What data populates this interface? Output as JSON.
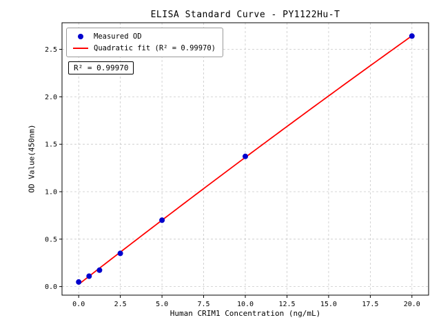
{
  "chart_data": {
    "type": "scatter",
    "title": "ELISA Standard Curve - PY1122Hu-T",
    "xlabel": "Human CRIM1 Concentration (ng/mL)",
    "ylabel": "OD Value(450nm)",
    "x": [
      0,
      0.625,
      1.25,
      2.5,
      5,
      10,
      20
    ],
    "y": [
      0.049,
      0.11,
      0.173,
      0.35,
      0.7,
      1.372,
      2.64
    ],
    "series": [
      {
        "name": "Measured OD",
        "style": "points"
      },
      {
        "name": "Quadratic fit (R² = 0.99970)",
        "style": "line"
      }
    ],
    "fit": {
      "kind": "quadratic",
      "r_squared": "0.99970"
    },
    "xlim": [
      -1,
      21
    ],
    "ylim": [
      -0.09,
      2.78
    ],
    "xticks": [
      0,
      2.5,
      5,
      7.5,
      10,
      12.5,
      15,
      17.5,
      20
    ],
    "xtick_labels": [
      "0.0",
      "2.5",
      "5.0",
      "7.5",
      "10.0",
      "12.5",
      "15.0",
      "17.5",
      "20.0"
    ],
    "yticks": [
      0,
      0.5,
      1.0,
      1.5,
      2.0,
      2.5
    ],
    "ytick_labels": [
      "0.0",
      "0.5",
      "1.0",
      "1.5",
      "2.0",
      "2.5"
    ],
    "legend": [
      "Measured OD",
      "Quadratic fit (R² = 0.99970)"
    ],
    "legend_position": "upper left",
    "annotation": "R² = 0.99970",
    "grid": true,
    "colors": {
      "points": "#0000cd",
      "fit_line": "#ff0000",
      "grid": "#c8c8c8",
      "axis": "#000000"
    }
  }
}
